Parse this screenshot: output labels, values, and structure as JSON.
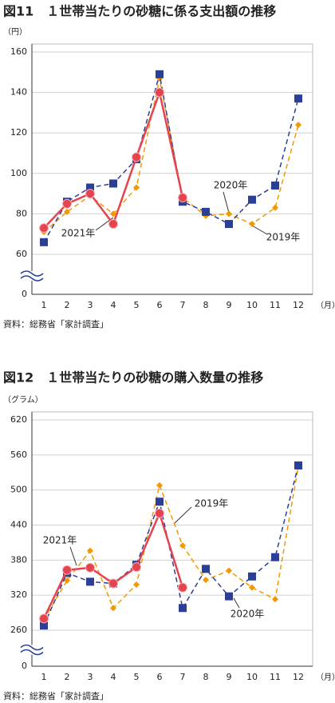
{
  "chart_data": [
    {
      "type": "line",
      "title": "図11　１世帯当たりの砂糖に係る支出額の推移",
      "y_unit": "（円）",
      "x_unit": "（月）",
      "categories": [
        "1",
        "2",
        "3",
        "4",
        "5",
        "6",
        "7",
        "8",
        "9",
        "10",
        "11",
        "12"
      ],
      "ylim": [
        60,
        160
      ],
      "yticks": [
        0,
        60,
        80,
        100,
        120,
        140,
        160
      ],
      "axis_break": true,
      "grid": true,
      "series": [
        {
          "name": "2020年",
          "color": "#2b3f96",
          "marker": "square",
          "dash": true,
          "values": [
            66,
            86,
            93,
            95,
            107,
            149,
            86,
            81,
            75,
            87,
            94,
            137
          ]
        },
        {
          "name": "2019年",
          "color": "#f39800",
          "marker": "diamond",
          "dash": true,
          "values": [
            71,
            81,
            89,
            80,
            93,
            147,
            88,
            79,
            80,
            75,
            83,
            124
          ]
        },
        {
          "name": "2021年",
          "color": "#e5444e",
          "marker": "circle",
          "dash": false,
          "values": [
            73,
            85,
            90,
            75,
            108,
            140,
            88,
            null,
            null,
            null,
            null,
            null
          ]
        }
      ],
      "source": "資料：総務省「家計調査」"
    },
    {
      "type": "line",
      "title": "図12　１世帯当たりの砂糖の購入数量の推移",
      "y_unit": "（グラム）",
      "x_unit": "（月）",
      "categories": [
        "1",
        "2",
        "3",
        "4",
        "5",
        "6",
        "7",
        "8",
        "9",
        "10",
        "11",
        "12"
      ],
      "ylim": [
        260,
        620
      ],
      "yticks": [
        0,
        260,
        320,
        380,
        440,
        500,
        560,
        620
      ],
      "axis_break": true,
      "grid": true,
      "series": [
        {
          "name": "2020年",
          "color": "#2b3f96",
          "marker": "square",
          "dash": true,
          "values": [
            268,
            358,
            343,
            340,
            372,
            480,
            298,
            365,
            318,
            352,
            385,
            542
          ]
        },
        {
          "name": "2019年",
          "color": "#f39800",
          "marker": "diamond",
          "dash": true,
          "values": [
            278,
            345,
            396,
            298,
            338,
            508,
            405,
            346,
            362,
            333,
            313,
            540
          ]
        },
        {
          "name": "2021年",
          "color": "#e5444e",
          "marker": "circle",
          "dash": false,
          "values": [
            280,
            363,
            367,
            340,
            368,
            460,
            333,
            null,
            null,
            null,
            null,
            null
          ]
        }
      ],
      "source": "資料：総務省「家計調査」"
    }
  ]
}
